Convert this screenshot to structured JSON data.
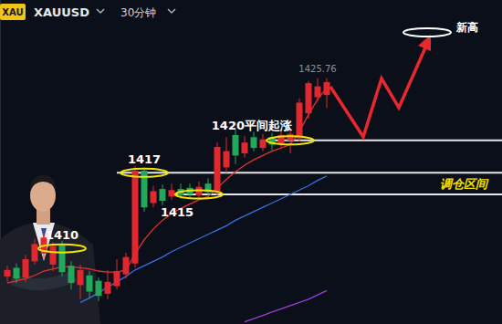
{
  "chart_data": {
    "type": "candlestick",
    "title": "XAUUSD",
    "subtitle": "30分钟",
    "badge": "XAU",
    "categories": [
      null,
      null,
      null,
      null,
      null,
      null,
      null,
      null,
      null,
      null,
      null,
      null,
      null,
      null,
      null,
      null,
      null,
      null,
      null,
      null,
      null,
      null,
      null,
      null,
      null,
      null,
      null,
      null,
      null,
      null,
      null,
      null,
      null,
      null,
      null,
      null
    ],
    "series": [
      {
        "type": "candlestick",
        "open": [
          1407.4,
          1408.2,
          1407.3,
          1408.8,
          1409.5,
          1408.5,
          1410.3,
          1408.4,
          1406.6,
          1407.5,
          1407.0,
          1405.8,
          1406.5,
          1407.6,
          1408.6,
          1417.2,
          1414.2,
          1415.5,
          1414.8,
          1415.5,
          1415.6,
          1414.9,
          1416.0,
          1415.3,
          1417.5,
          1420.5,
          1418.8,
          1420.3,
          1419.3,
          1420.3,
          1419.7,
          1420.0,
          1420.2,
          1422.5,
          1424.0,
          1424.2
        ],
        "high": [
          1408.4,
          1408.6,
          1409.4,
          1410.9,
          1411.4,
          1410.6,
          1410.7,
          1408.8,
          1408.5,
          1407.9,
          1407.3,
          1408.0,
          1409.0,
          1409.6,
          1417.6,
          1417.5,
          1415.8,
          1415.9,
          1416.0,
          1416.0,
          1416.0,
          1416.2,
          1416.5,
          1419.8,
          1420.3,
          1421.0,
          1420.4,
          1420.8,
          1420.6,
          1420.7,
          1421.0,
          1421.0,
          1423.9,
          1425.5,
          1425.76,
          1425.76
        ],
        "low": [
          1406.9,
          1406.8,
          1406.9,
          1408.5,
          1409.1,
          1407.9,
          1407.4,
          1406.2,
          1405.3,
          1405.4,
          1405.1,
          1405.3,
          1406.2,
          1407.2,
          1408.2,
          1413.4,
          1413.8,
          1414.0,
          1414.5,
          1414.6,
          1414.7,
          1414.6,
          1414.9,
          1414.9,
          1417.0,
          1417.8,
          1418.4,
          1419.0,
          1419.0,
          1419.1,
          1419.4,
          1418.8,
          1419.9,
          1422.0,
          1423.6,
          1423.0
        ],
        "close": [
          1408.0,
          1407.2,
          1409.0,
          1410.4,
          1411.0,
          1410.2,
          1407.8,
          1406.8,
          1408.0,
          1406.0,
          1405.6,
          1406.9,
          1407.9,
          1409.2,
          1417.2,
          1413.8,
          1415.3,
          1414.4,
          1415.4,
          1414.9,
          1415.0,
          1415.7,
          1415.2,
          1419.4,
          1419.0,
          1418.6,
          1419.8,
          1419.3,
          1420.1,
          1419.6,
          1420.5,
          1420.6,
          1423.5,
          1425.3,
          1425.0,
          1425.4
        ],
        "colors": [
          "#e0282e",
          "#22a85a",
          "#e0282e",
          "#e0282e",
          "#e0282e",
          "#e0282e",
          "#22a85a",
          "#22a85a",
          "#e0282e",
          "#22a85a",
          "#22a85a",
          "#e0282e",
          "#e0282e",
          "#e0282e",
          "#e0282e",
          "#22a85a",
          "#e0282e",
          "#22a85a",
          "#e0282e",
          "#22a85a",
          "#22a85a",
          "#e0282e",
          "#22a85a",
          "#e0282e",
          "#e0282e",
          "#22a85a",
          "#e0282e",
          "#22a85a",
          "#e0282e",
          "#22a85a",
          "#e0282e",
          "#e0282e",
          "#e0282e",
          "#e0282e",
          "#e0282e",
          "#e0282e"
        ]
      },
      {
        "type": "line",
        "color": "#e0342f",
        "values": [
          1406.8,
          1407.0,
          1407.2,
          1407.5,
          1407.9,
          1408.1,
          1408.3,
          1408.3,
          1408.2,
          1408.1,
          1407.9,
          1407.8,
          1407.8,
          1408.0,
          1409.5,
          1410.8,
          1411.8,
          1412.6,
          1413.2,
          1413.7,
          1414.1,
          1414.5,
          1414.8,
          1415.6,
          1416.4,
          1417.1,
          1417.7,
          1418.2,
          1418.6,
          1419.0,
          1419.3,
          1419.6,
          1420.8,
          1422.4,
          1423.8,
          1424.9
        ]
      },
      {
        "type": "line",
        "color": "#3b6fe0",
        "values": [
          null,
          null,
          null,
          null,
          null,
          null,
          null,
          null,
          1405.0,
          1405.4,
          1405.9,
          1406.4,
          1406.9,
          1407.4,
          1408.0,
          1408.4,
          1408.8,
          1409.2,
          1409.7,
          1410.1,
          1410.5,
          1410.9,
          1411.3,
          1411.7,
          1412.1,
          1412.6,
          1413.0,
          1413.4,
          1413.8,
          1414.2,
          1414.6,
          1415.0,
          1415.4,
          1415.8,
          1416.3,
          1416.7
        ]
      },
      {
        "type": "line",
        "color": "#9b3fd8",
        "values": [
          null,
          null,
          null,
          null,
          null,
          null,
          null,
          null,
          null,
          null,
          null,
          null,
          null,
          null,
          null,
          null,
          null,
          null,
          null,
          null,
          null,
          null,
          null,
          null,
          null,
          null,
          1403.2,
          1403.5,
          1403.8,
          1404.1,
          1404.4,
          1404.7,
          1405.0,
          1405.3,
          1405.7,
          1406.1
        ]
      }
    ],
    "ylim": [
      1403,
      1433
    ],
    "tick_labels": false,
    "levels": [
      {
        "value": 1420,
        "start": 29
      },
      {
        "value": 1417,
        "start": 12
      },
      {
        "value": 1415,
        "start": 18
      }
    ],
    "annotations": [
      {
        "text": "1410",
        "value": 1410,
        "index": 6,
        "position": "above"
      },
      {
        "text": "1417",
        "value": 1417,
        "index": 15,
        "position": "above"
      },
      {
        "text": "1415",
        "value": 1415,
        "index": 21,
        "position": "below-left"
      },
      {
        "text": "1420平间起涨",
        "value": 1420,
        "index": 31,
        "position": "above-left"
      },
      {
        "text": "1425.76",
        "value": 1425.76,
        "index": 34,
        "position": "above"
      },
      {
        "text": "新高",
        "value": 1430,
        "index": 46,
        "position": "right"
      },
      {
        "text": "调仓区间",
        "value": 1416,
        "index": 50,
        "position": "center"
      }
    ]
  }
}
